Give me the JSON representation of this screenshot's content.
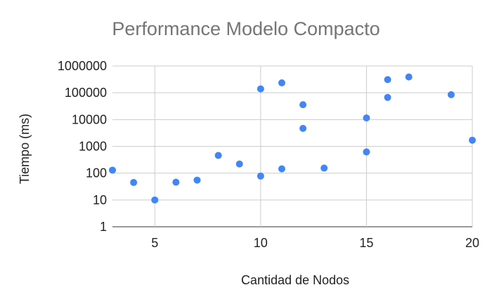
{
  "chart_data": {
    "type": "scatter",
    "title": "Performance Modelo Compacto",
    "xlabel": "Cantidad de Nodos",
    "ylabel": "Tiempo (ms)",
    "xlim": [
      3,
      20
    ],
    "ylim": [
      1,
      1000000
    ],
    "y_scale": "log",
    "x_ticks": [
      5,
      10,
      15,
      20
    ],
    "y_ticks": [
      1,
      10,
      100,
      1000,
      10000,
      100000,
      1000000
    ],
    "x_tick_labels": [
      "5",
      "10",
      "15",
      "20"
    ],
    "y_tick_labels": [
      "1",
      "10",
      "100",
      "1000",
      "10000",
      "100000",
      "1000000"
    ],
    "grid": true,
    "legend": "none",
    "series": [
      {
        "color": "#4285f4",
        "points": [
          {
            "x": 3,
            "y": 130
          },
          {
            "x": 4,
            "y": 45
          },
          {
            "x": 5,
            "y": 10
          },
          {
            "x": 6,
            "y": 46
          },
          {
            "x": 7,
            "y": 55
          },
          {
            "x": 8,
            "y": 460
          },
          {
            "x": 9,
            "y": 220
          },
          {
            "x": 10,
            "y": 78
          },
          {
            "x": 10,
            "y": 140000
          },
          {
            "x": 11,
            "y": 145
          },
          {
            "x": 11,
            "y": 235000
          },
          {
            "x": 12,
            "y": 4700
          },
          {
            "x": 12,
            "y": 36000
          },
          {
            "x": 13,
            "y": 155
          },
          {
            "x": 15,
            "y": 620
          },
          {
            "x": 15,
            "y": 11500
          },
          {
            "x": 16,
            "y": 67000
          },
          {
            "x": 16,
            "y": 310000
          },
          {
            "x": 17,
            "y": 390000
          },
          {
            "x": 19,
            "y": 85000
          },
          {
            "x": 20,
            "y": 1700
          }
        ]
      }
    ]
  }
}
